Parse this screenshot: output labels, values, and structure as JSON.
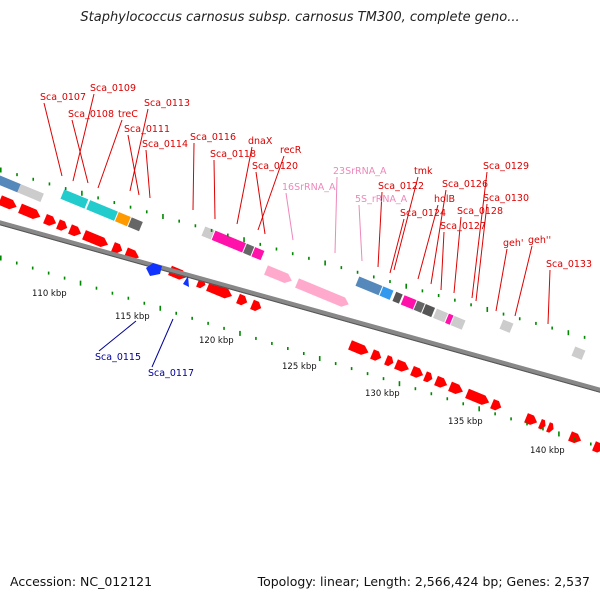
{
  "title": "Staphylococcus carnosus subsp. carnosus TM300, complete geno...",
  "footer": {
    "accession": "Accession: NC_012121",
    "summary": "Topology: linear; Length: 2,566,424 bp; Genes: 2,537"
  },
  "colors": {
    "forward_gene": "#ff0000",
    "reverse_gene": "#0000ff",
    "rrna": "#ffaacc",
    "label_red": "#dd0000",
    "label_blue": "#000099",
    "label_pink": "#ee88bb",
    "tick_green": "#008800"
  },
  "ticks": [
    "110 kbp",
    "115 kbp",
    "120 kbp",
    "125 kbp",
    "130 kbp",
    "135 kbp",
    "140 kbp"
  ],
  "labels": [
    {
      "text": "Sca_0107",
      "color": "red"
    },
    {
      "text": "Sca_0109",
      "color": "red"
    },
    {
      "text": "Sca_0108",
      "color": "red"
    },
    {
      "text": "treC",
      "color": "red"
    },
    {
      "text": "Sca_0113",
      "color": "red"
    },
    {
      "text": "Sca_0111",
      "color": "red"
    },
    {
      "text": "Sca_0114",
      "color": "red"
    },
    {
      "text": "Sca_0116",
      "color": "red"
    },
    {
      "text": "Sca_0118",
      "color": "red"
    },
    {
      "text": "dnaX",
      "color": "red"
    },
    {
      "text": "recR",
      "color": "red"
    },
    {
      "text": "Sca_0120",
      "color": "red"
    },
    {
      "text": "16SrRNA_A",
      "color": "pink"
    },
    {
      "text": "23SrRNA_A",
      "color": "pink"
    },
    {
      "text": "5S_rRNA_A",
      "color": "pink"
    },
    {
      "text": "tmk",
      "color": "red"
    },
    {
      "text": "Sca_0122",
      "color": "red"
    },
    {
      "text": "Sca_0129",
      "color": "red"
    },
    {
      "text": "Sca_0126",
      "color": "red"
    },
    {
      "text": "holB",
      "color": "red"
    },
    {
      "text": "Sca_0130",
      "color": "red"
    },
    {
      "text": "Sca_0124",
      "color": "red"
    },
    {
      "text": "Sca_0128",
      "color": "red"
    },
    {
      "text": "Sca_0127",
      "color": "red"
    },
    {
      "text": "geh'",
      "color": "red"
    },
    {
      "text": "geh''",
      "color": "red"
    },
    {
      "text": "Sca_0133",
      "color": "red"
    },
    {
      "text": "Sca_0115",
      "color": "blue"
    },
    {
      "text": "Sca_0117",
      "color": "blue"
    }
  ]
}
